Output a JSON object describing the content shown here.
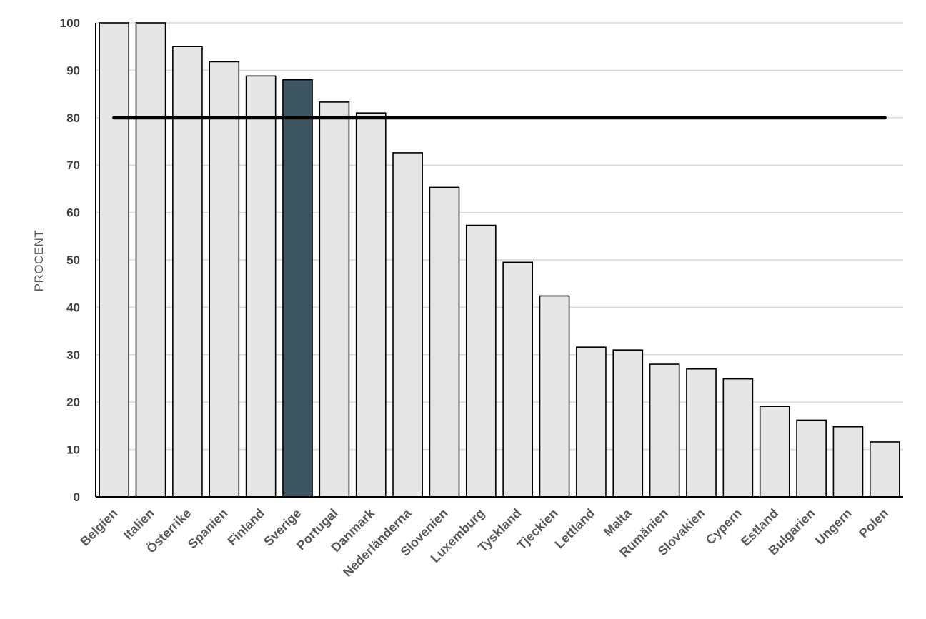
{
  "chart_data": {
    "type": "bar",
    "title": "",
    "xlabel": "",
    "ylabel": "PROCENT",
    "ylim": [
      0,
      100
    ],
    "yticks": [
      0,
      10,
      20,
      30,
      40,
      50,
      60,
      70,
      80,
      90,
      100
    ],
    "grid": true,
    "categories": [
      "Belgien",
      "Italien",
      "Österrike",
      "Spanien",
      "Finland",
      "Sverige",
      "Portugal",
      "Danmark",
      "Nederländerna",
      "Slovenien",
      "Luxemburg",
      "Tyskland",
      "Tjeckien",
      "Lettland",
      "Malta",
      "Rumänien",
      "Slovakien",
      "Cypern",
      "Estland",
      "Bulgarien",
      "Ungern",
      "Polen"
    ],
    "values": [
      100,
      100,
      95,
      91.8,
      88.8,
      88,
      83.3,
      81,
      72.6,
      65.3,
      57.3,
      49.5,
      42.4,
      31.6,
      31,
      28,
      27,
      24.9,
      19.1,
      16.2,
      14.8,
      11.6
    ],
    "highlight": "Sverige",
    "reference_line": 80,
    "colors": {
      "bar": "#e6e6e6",
      "highlight": "#3d5662",
      "reference": "#000000"
    }
  }
}
